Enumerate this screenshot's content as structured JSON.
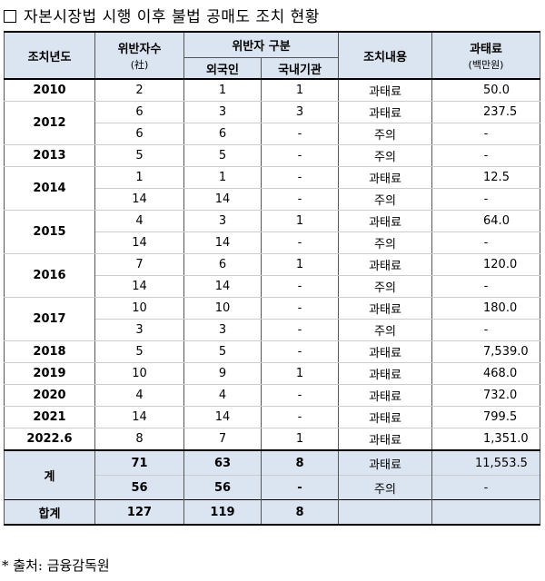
{
  "title": "자본시장법 시행 이후 불법 공매도 조치 현황",
  "headers": {
    "year": "조치년도",
    "violators": "위반자수",
    "violators_unit": "(社)",
    "type": "위반자 구분",
    "foreign": "외국인",
    "domestic": "국내기관",
    "action": "조치내용",
    "fine": "과태료",
    "fine_unit": "(백만원)"
  },
  "rows": [
    {
      "year": "2010",
      "count": "2",
      "foreign": "1",
      "domestic": "1",
      "action": "과태료",
      "fine": "50.0"
    },
    {
      "year": "2012",
      "count": "6",
      "foreign": "3",
      "domestic": "3",
      "action": "과태료",
      "fine": "237.5"
    },
    {
      "year": "",
      "count": "6",
      "foreign": "6",
      "domestic": "-",
      "action": "주의",
      "fine": "-"
    },
    {
      "year": "2013",
      "count": "5",
      "foreign": "5",
      "domestic": "-",
      "action": "주의",
      "fine": "-"
    },
    {
      "year": "2014",
      "count": "1",
      "foreign": "1",
      "domestic": "-",
      "action": "과태료",
      "fine": "12.5"
    },
    {
      "year": "",
      "count": "14",
      "foreign": "14",
      "domestic": "-",
      "action": "주의",
      "fine": "-"
    },
    {
      "year": "2015",
      "count": "4",
      "foreign": "3",
      "domestic": "1",
      "action": "과태료",
      "fine": "64.0"
    },
    {
      "year": "",
      "count": "14",
      "foreign": "14",
      "domestic": "-",
      "action": "주의",
      "fine": "-"
    },
    {
      "year": "2016",
      "count": "7",
      "foreign": "6",
      "domestic": "1",
      "action": "과태료",
      "fine": "120.0"
    },
    {
      "year": "",
      "count": "14",
      "foreign": "14",
      "domestic": "-",
      "action": "주의",
      "fine": "-"
    },
    {
      "year": "2017",
      "count": "10",
      "foreign": "10",
      "domestic": "-",
      "action": "과태료",
      "fine": "180.0"
    },
    {
      "year": "",
      "count": "3",
      "foreign": "3",
      "domestic": "-",
      "action": "주의",
      "fine": "-"
    },
    {
      "year": "2018",
      "count": "5",
      "foreign": "5",
      "domestic": "-",
      "action": "과태료",
      "fine": "7,539.0"
    },
    {
      "year": "2019",
      "count": "10",
      "foreign": "9",
      "domestic": "1",
      "action": "과태료",
      "fine": "468.0"
    },
    {
      "year": "2020",
      "count": "4",
      "foreign": "4",
      "domestic": "-",
      "action": "과태료",
      "fine": "732.0"
    },
    {
      "year": "2021",
      "count": "14",
      "foreign": "14",
      "domestic": "-",
      "action": "과태료",
      "fine": "799.5"
    },
    {
      "year": "2022.6",
      "count": "8",
      "foreign": "7",
      "domestic": "1",
      "action": "과태료",
      "fine": "1,351.0"
    }
  ],
  "subtotal": {
    "label": "계",
    "rows": [
      {
        "count": "71",
        "foreign": "63",
        "domestic": "8",
        "action": "과태료",
        "fine": "11,553.5"
      },
      {
        "count": "56",
        "foreign": "56",
        "domestic": "-",
        "action": "주의",
        "fine": "-"
      }
    ]
  },
  "total": {
    "label": "합계",
    "count": "127",
    "foreign": "119",
    "domestic": "8",
    "action": "",
    "fine": ""
  },
  "source": "* 출처: 금융감독원"
}
